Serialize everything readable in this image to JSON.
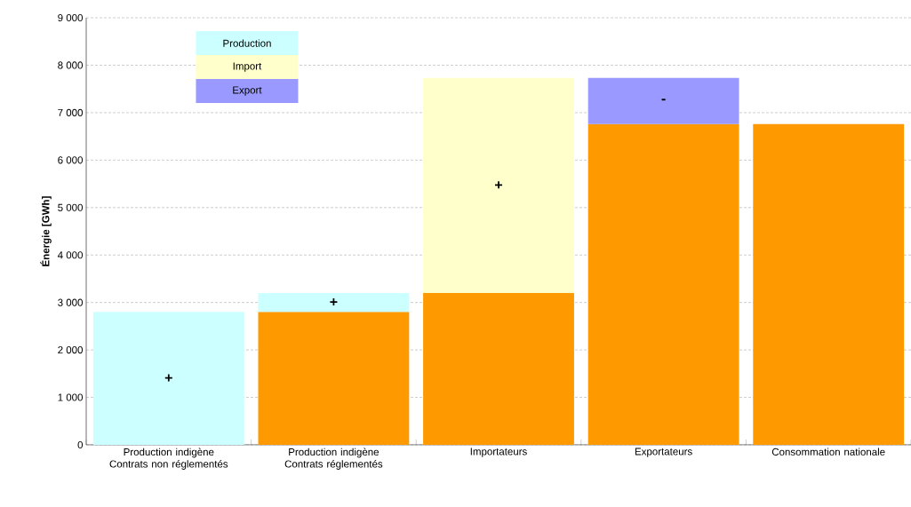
{
  "chart_data": {
    "type": "bar",
    "stacked": true,
    "ylabel": "Énergie [GWh]",
    "categories": [
      "Production indigène Contrats non réglementés",
      "Production indigène Contrats réglementés",
      "Importateurs",
      "Exportateurs",
      "Consommation nationale"
    ],
    "series": [
      {
        "color": "#ff9900",
        "values": [
          null,
          2800,
          3200,
          6760,
          6760
        ]
      },
      {
        "name": "Production",
        "color": "#ccffff",
        "values": [
          2800,
          400,
          null,
          null,
          null
        ]
      },
      {
        "name": "Import",
        "color": "#ffffcc",
        "values": [
          null,
          null,
          4530,
          null,
          null
        ]
      },
      {
        "name": "Export",
        "color": "#9999ff",
        "values": [
          null,
          null,
          null,
          970,
          null
        ]
      }
    ],
    "ylim": [
      0,
      9000
    ],
    "yticks": [
      0,
      {
        "value": 1000,
        "label": "1 000"
      },
      {
        "value": 2000,
        "label": "2 000"
      },
      {
        "value": 3000,
        "label": "3 000"
      },
      {
        "value": 4000,
        "label": "4 000"
      },
      {
        "value": 5000,
        "label": "5 000"
      },
      {
        "value": 6000,
        "label": "6 000"
      },
      {
        "value": 7000,
        "label": "7 000"
      },
      {
        "value": 8000,
        "label": "8 000"
      },
      {
        "value": 9000,
        "label": "9 000"
      }
    ],
    "grid": "y",
    "legend": "top left",
    "annotations": [
      "+",
      "+",
      "+",
      "-"
    ]
  }
}
